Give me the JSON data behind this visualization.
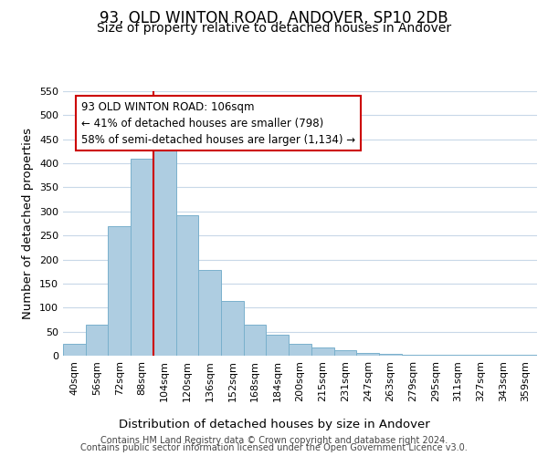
{
  "title": "93, OLD WINTON ROAD, ANDOVER, SP10 2DB",
  "subtitle": "Size of property relative to detached houses in Andover",
  "xlabel": "Distribution of detached houses by size in Andover",
  "ylabel": "Number of detached properties",
  "bar_labels": [
    "40sqm",
    "56sqm",
    "72sqm",
    "88sqm",
    "104sqm",
    "120sqm",
    "136sqm",
    "152sqm",
    "168sqm",
    "184sqm",
    "200sqm",
    "215sqm",
    "231sqm",
    "247sqm",
    "263sqm",
    "279sqm",
    "295sqm",
    "311sqm",
    "327sqm",
    "343sqm",
    "359sqm"
  ],
  "bar_heights": [
    25,
    65,
    270,
    410,
    455,
    293,
    179,
    113,
    65,
    43,
    25,
    17,
    11,
    5,
    3,
    2,
    1,
    1,
    1,
    1,
    1
  ],
  "bar_color": "#aecde1",
  "bar_edge_color": "#7ab0cc",
  "vline_x": 3.5,
  "vline_color": "#cc0000",
  "ylim": [
    0,
    550
  ],
  "yticks": [
    0,
    50,
    100,
    150,
    200,
    250,
    300,
    350,
    400,
    450,
    500,
    550
  ],
  "annotation_line1": "93 OLD WINTON ROAD: 106sqm",
  "annotation_line2": "← 41% of detached houses are smaller (798)",
  "annotation_line3": "58% of semi-detached houses are larger (1,134) →",
  "annotation_box_color": "#ffffff",
  "annotation_box_edge": "#cc0000",
  "footer_line1": "Contains HM Land Registry data © Crown copyright and database right 2024.",
  "footer_line2": "Contains public sector information licensed under the Open Government Licence v3.0.",
  "bg_color": "#ffffff",
  "grid_color": "#c8d8e8",
  "title_fontsize": 12,
  "subtitle_fontsize": 10,
  "axis_label_fontsize": 9.5,
  "tick_fontsize": 8,
  "annotation_fontsize": 8.5,
  "footer_fontsize": 7
}
